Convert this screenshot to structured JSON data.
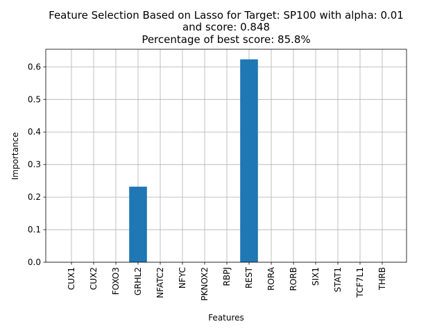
{
  "chart_data": {
    "type": "bar",
    "title": "Feature Selection Based on Lasso for Target: SP100 with alpha: 0.01",
    "title_lines": [
      "Feature Selection Based on Lasso for Target: SP100 with alpha: 0.01",
      "and score: 0.848",
      "Percentage of best score: 85.8%"
    ],
    "xlabel": "Features",
    "ylabel": "Importance",
    "categories": [
      "CUX1",
      "CUX2",
      "FOXO3",
      "GRHL2",
      "NFATC2",
      "NFYC",
      "PKNOX2",
      "RBPJ",
      "REST",
      "RORA",
      "RORB",
      "SIX1",
      "STAT1",
      "TCF7L1",
      "THRB"
    ],
    "values": [
      0,
      0,
      0,
      0.232,
      0,
      0,
      0,
      0,
      0.623,
      0,
      0,
      0,
      0,
      0,
      0
    ],
    "ylim": [
      0,
      0.654
    ],
    "yticks": [
      0.0,
      0.1,
      0.2,
      0.3,
      0.4,
      0.5,
      0.6
    ],
    "ytick_labels": [
      "0.0",
      "0.1",
      "0.2",
      "0.3",
      "0.4",
      "0.5",
      "0.6"
    ],
    "grid": true,
    "bar_color": "#1f77b4"
  }
}
